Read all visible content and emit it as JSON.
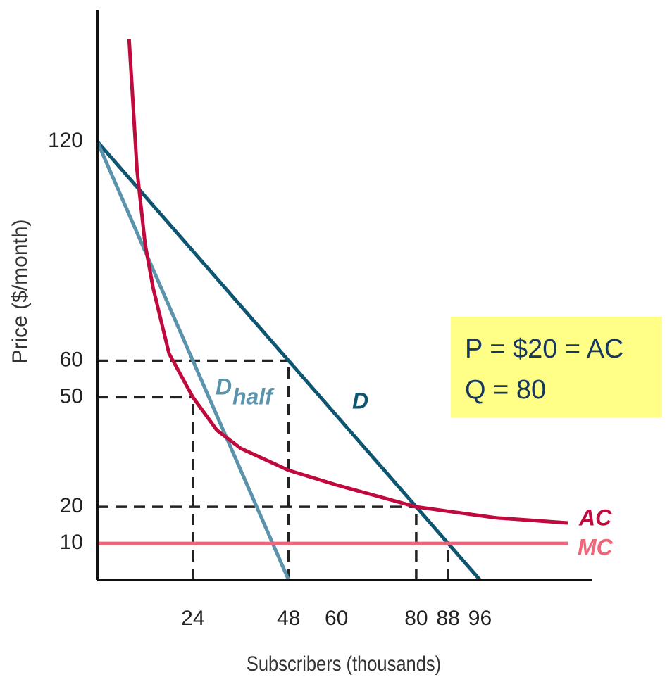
{
  "chart_data": {
    "type": "line",
    "xlabel": "Subscribers (thousands)",
    "ylabel": "Price ($/month)",
    "xlim": [
      0,
      124
    ],
    "ylim": [
      0,
      156
    ],
    "xticks": [
      24,
      48,
      60,
      80,
      88,
      96
    ],
    "yticks": [
      10,
      20,
      50,
      60,
      120
    ],
    "grid": false,
    "series": [
      {
        "name": "D",
        "color": "#0d5570",
        "x": [
          0,
          96
        ],
        "values": [
          120,
          0
        ]
      },
      {
        "name": "D",
        "name_subscript": "half",
        "color": "#5a93ab",
        "x": [
          0,
          48
        ],
        "values": [
          120,
          0
        ]
      },
      {
        "name": "AC",
        "color": "#c0093c",
        "x": [
          8,
          10,
          12,
          14,
          18,
          24,
          30,
          36,
          48,
          60,
          80,
          100,
          118
        ],
        "values": [
          148,
          112,
          92,
          80,
          62,
          50,
          41,
          36,
          30,
          26,
          20,
          17,
          15.6
        ]
      },
      {
        "name": "MC",
        "color": "#f0657a",
        "x": [
          0,
          118
        ],
        "values": [
          10,
          10
        ]
      }
    ],
    "reference_lines": [
      {
        "x": [
          0,
          48
        ],
        "y": [
          60,
          60
        ]
      },
      {
        "x": [
          0,
          24
        ],
        "y": [
          50,
          50
        ]
      },
      {
        "x": [
          0,
          80
        ],
        "y": [
          20,
          20
        ]
      },
      {
        "x": [
          24,
          24
        ],
        "y": [
          0,
          50
        ]
      },
      {
        "x": [
          48,
          48
        ],
        "y": [
          0,
          60
        ]
      },
      {
        "x": [
          80,
          80
        ],
        "y": [
          0,
          20
        ]
      },
      {
        "x": [
          88,
          88
        ],
        "y": [
          0,
          10
        ]
      }
    ],
    "annotation": {
      "lines": [
        "P = $20 = AC",
        "Q = 80"
      ]
    }
  }
}
